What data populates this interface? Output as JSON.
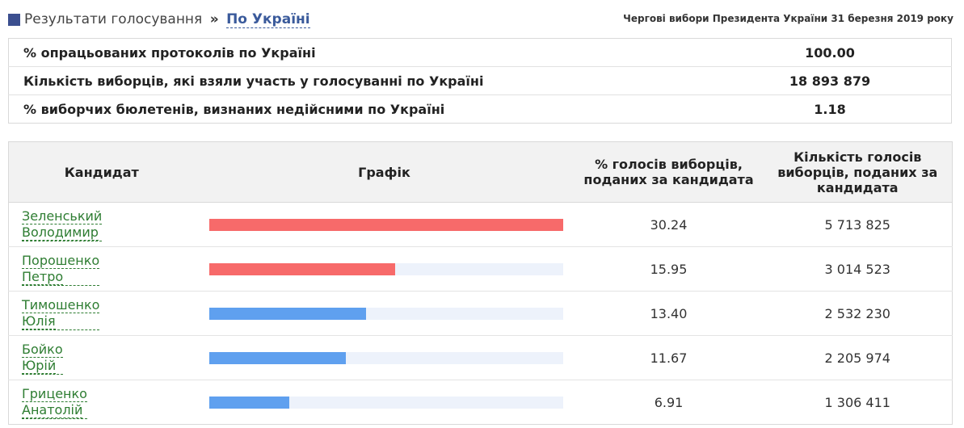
{
  "header": {
    "breadcrumb": "Результати голосування",
    "separator": "»",
    "current": "По Україні",
    "election": "Чергові вибори Президента України 31 березня 2019 року"
  },
  "summary": [
    {
      "label": "% опрацьованих протоколів по Україні",
      "value": "100.00"
    },
    {
      "label": "Кількість виборців, які взяли участь у голосуванні по Україні",
      "value": "18 893 879"
    },
    {
      "label": "% виборчих бюлетенів, визнаних недійсними по Україні",
      "value": "1.18"
    }
  ],
  "table": {
    "columns": [
      "Кандидат",
      "Графік",
      "% голосів виборців, поданих за кандидата",
      "Кількість голосів виборців, поданих за кандидата"
    ],
    "rows": [
      {
        "last": "Зеленський",
        "first": "Володимир",
        "percent": "30.24",
        "votes": "5 713 825",
        "bar": 1.0,
        "color": "#f76a6a"
      },
      {
        "last": "Порошенко",
        "first": "Петро",
        "percent": "15.95",
        "votes": "3 014 523",
        "bar": 0.527,
        "color": "#f76a6a"
      },
      {
        "last": "Тимошенко",
        "first": "Юлія",
        "percent": "13.40",
        "votes": "2 532 230",
        "bar": 0.443,
        "color": "#5fa0ef"
      },
      {
        "last": "Бойко",
        "first": "Юрій",
        "percent": "11.67",
        "votes": "2 205 974",
        "bar": 0.386,
        "color": "#5fa0ef"
      },
      {
        "last": "Гриценко",
        "first": "Анатолій",
        "percent": "6.91",
        "votes": "1 306 411",
        "bar": 0.228,
        "color": "#5fa0ef"
      }
    ]
  }
}
